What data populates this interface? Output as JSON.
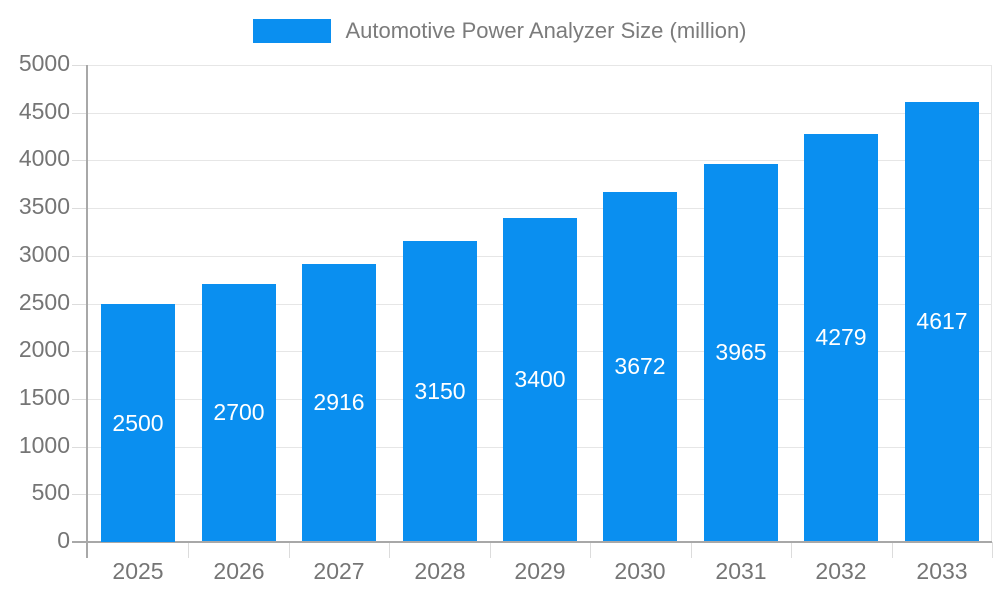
{
  "legend": {
    "label": "Automotive Power Analyzer Size (million)"
  },
  "colors": {
    "bar": "#0a8ff0",
    "bar_value_text": "#ffffff",
    "axis_line": "#a8a8a8",
    "gridline": "#e6e6e6",
    "tick": "#dcdcdc",
    "axis_text": "#757575",
    "legend_text": "#7b7b7b",
    "background": "#ffffff"
  },
  "chart_data": {
    "type": "bar",
    "title": "Automotive Power Analyzer Size (million)",
    "categories": [
      "2025",
      "2026",
      "2027",
      "2028",
      "2029",
      "2030",
      "2031",
      "2032",
      "2033"
    ],
    "values": [
      2500,
      2700,
      2916,
      3150,
      3400,
      3672,
      3965,
      4279,
      4617
    ],
    "series_name": "Automotive Power Analyzer Size (million)",
    "xlabel": "",
    "ylabel": "",
    "ylim": [
      0,
      5000
    ],
    "ytick_step": 500,
    "yticks": [
      0,
      500,
      1000,
      1500,
      2000,
      2500,
      3000,
      3500,
      4000,
      4500,
      5000
    ],
    "grid": true,
    "legend_position": "top",
    "value_labels": "inside-center"
  }
}
